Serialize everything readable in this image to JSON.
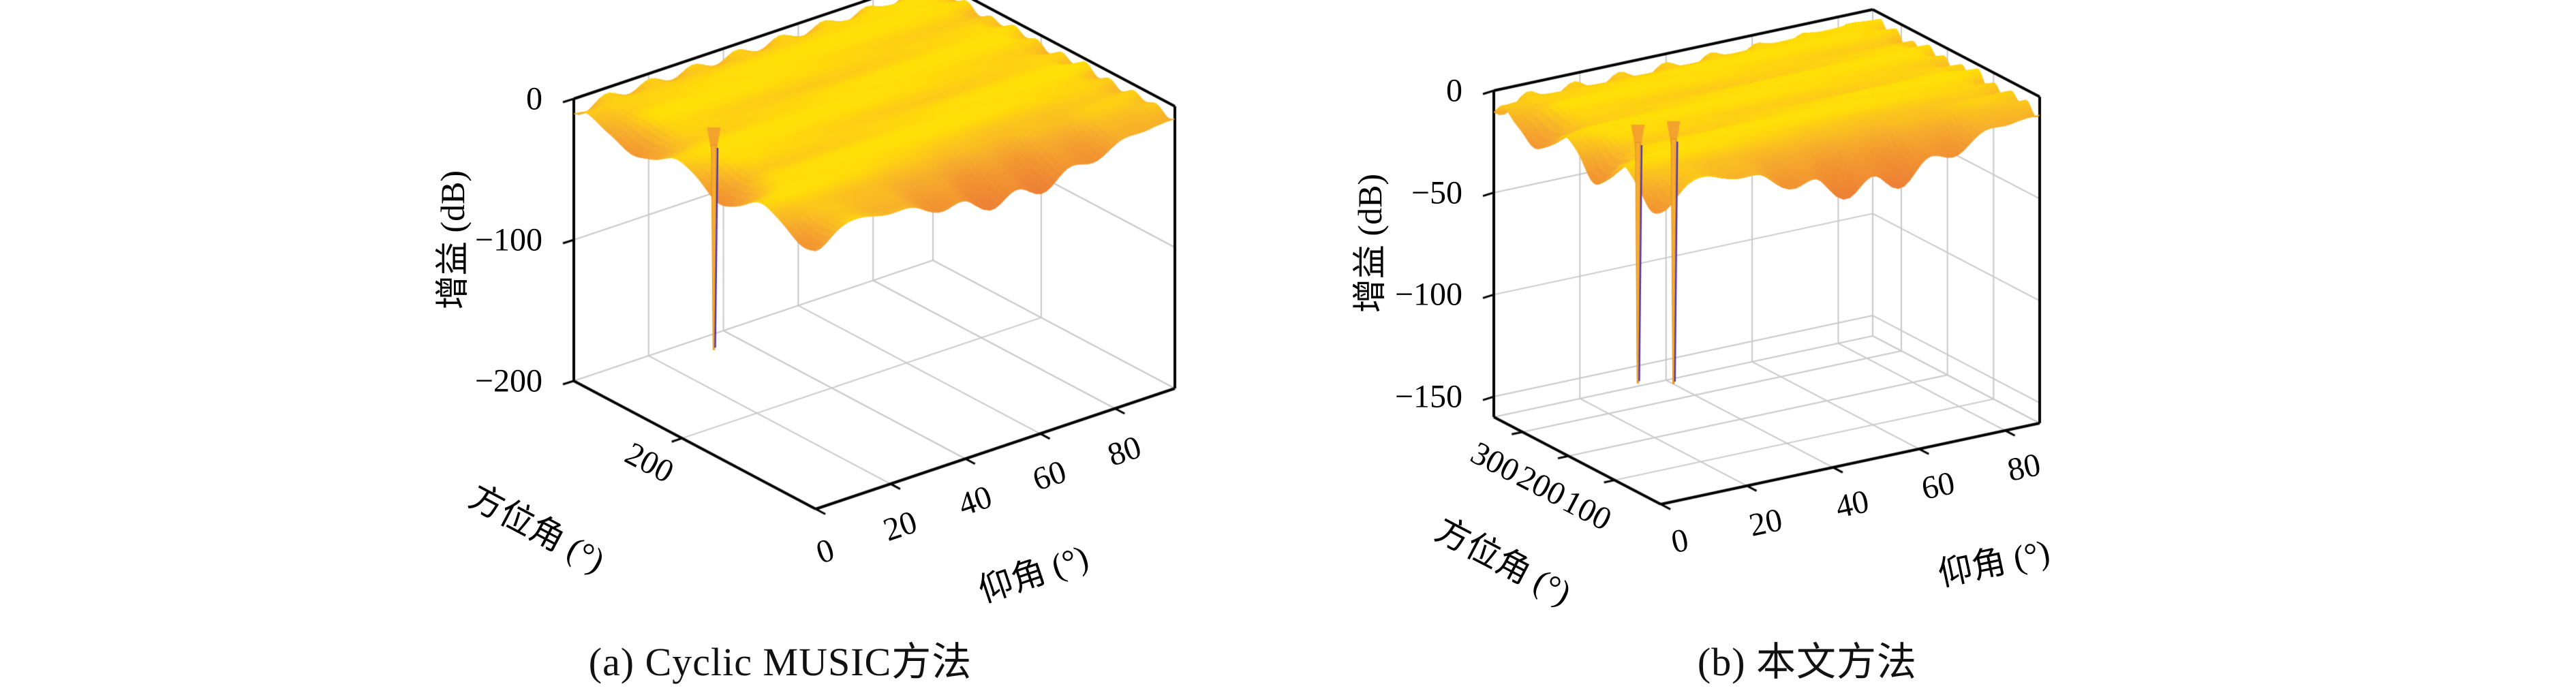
{
  "page": {
    "background": "#FFFFFF"
  },
  "chart_data": [
    {
      "type": "surface3d",
      "panel": "a",
      "title": "(a) Cyclic MUSIC方法",
      "xlabel": "仰角 (°)",
      "ylabel": "方位角 (°)",
      "zlabel": "增益 (dB)",
      "xlim": [
        0,
        90
      ],
      "ylim": [
        0,
        360
      ],
      "zlim": [
        -200,
        0
      ],
      "xticks": [
        0,
        20,
        40,
        60,
        80
      ],
      "yticks": [
        200
      ],
      "zticks": [
        0,
        -100,
        -200
      ],
      "grid": true,
      "legend": null,
      "surface": {
        "description": "Beamforming gain pattern: plateau near 0 dB with shallow diagonal ripple valleys (~ -10 dB) and draped jagged edges (~ -40 dB)",
        "plateau_dB": -2,
        "ripple_valley_dB": -10,
        "edge_drape_dB": -40
      },
      "nulls": [
        {
          "azimuth_deg": 298,
          "elevation_deg": 26,
          "null_depth_dB": -185
        }
      ],
      "colors": {
        "surface_high": "#FFE304",
        "surface_mid": "#F6AC2B",
        "surface_low": "#EC8034",
        "null_spike": "#F6AC2D",
        "null_core": "#4B33BB",
        "grid_line": "#C8C8C8",
        "axis_line": "#000000"
      }
    },
    {
      "type": "surface3d",
      "panel": "b",
      "title": "(b) 本文方法",
      "xlabel": "仰角 (°)",
      "ylabel": "方位角 (°)",
      "zlabel": "增益 (dB)",
      "xlim": [
        0,
        90
      ],
      "ylim": [
        0,
        360
      ],
      "zlim": [
        -160,
        0
      ],
      "xticks": [
        0,
        20,
        40,
        60,
        80
      ],
      "yticks": [
        100,
        200,
        300
      ],
      "zticks": [
        0,
        -50,
        -100,
        -150
      ],
      "grid": true,
      "legend": null,
      "surface": {
        "description": "Beamforming gain pattern: plateau near 0 dB with shallow diagonal ripple valleys (~ -10 dB) and draped jagged edges (~ -40 dB)",
        "plateau_dB": -2,
        "ripple_valley_dB": -10,
        "edge_drape_dB": -40
      },
      "nulls": [
        {
          "azimuth_deg": 311,
          "elevation_deg": 28,
          "null_depth_dB": -150
        },
        {
          "azimuth_deg": 299,
          "elevation_deg": 35,
          "null_depth_dB": -152
        }
      ],
      "colors": {
        "surface_high": "#FFE304",
        "surface_mid": "#F6AC2B",
        "surface_low": "#EC8034",
        "null_spike": "#F6AC2D",
        "null_core": "#4B33BB",
        "grid_line": "#C8C8C8",
        "axis_line": "#000000"
      }
    }
  ]
}
